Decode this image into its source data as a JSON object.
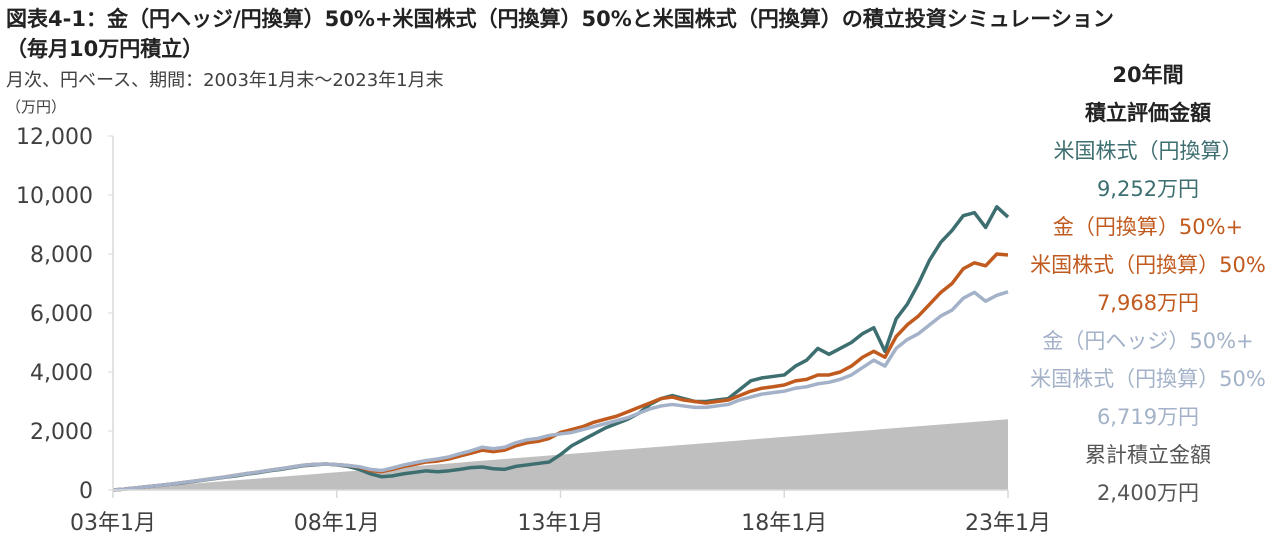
{
  "chart_data": {
    "type": "line",
    "title": "図表4-1：金（円ヘッジ/円換算）50%+米国株式（円換算）50%と米国株式（円換算）の積立投資シミュレーション\n（毎月10万円積立）",
    "subtitle": "月次、円ベース、期間：2003年1月末～2023年1月末",
    "y_label": "（万円）",
    "panel_title": "20年間\n積立評価金額",
    "categories": [
      "03年1月",
      null,
      null,
      null,
      null,
      null,
      null,
      null,
      null,
      null,
      null,
      null,
      null,
      null,
      null,
      null,
      null,
      null,
      null,
      null,
      "08年1月",
      null,
      null,
      null,
      null,
      null,
      null,
      null,
      null,
      null,
      null,
      null,
      null,
      null,
      null,
      null,
      null,
      null,
      null,
      null,
      "13年1月",
      null,
      null,
      null,
      null,
      null,
      null,
      null,
      null,
      null,
      null,
      null,
      null,
      null,
      null,
      null,
      null,
      null,
      null,
      null,
      "18年1月",
      null,
      null,
      null,
      null,
      null,
      null,
      null,
      null,
      null,
      null,
      null,
      null,
      null,
      null,
      null,
      null,
      null,
      null,
      null,
      "23年1月"
    ],
    "ylim": [
      0,
      12000
    ],
    "yticks": [
      0,
      {
        "value": 2000,
        "label": "2,000"
      },
      {
        "value": 4000,
        "label": "4,000"
      },
      {
        "value": 6000,
        "label": "6,000"
      },
      {
        "value": 8000,
        "label": "8,000"
      },
      {
        "value": 10000,
        "label": "10,000"
      },
      {
        "value": 12000,
        "label": "12,000"
      }
    ],
    "grid": false,
    "series": [
      {
        "name": "米国株式（円換算）",
        "color": "#3d6e70",
        "type": "line",
        "values": [
          0,
          30,
          70,
          110,
          150,
          190,
          230,
          280,
          330,
          380,
          430,
          480,
          540,
          590,
          650,
          700,
          760,
          820,
          850,
          880,
          850,
          800,
          700,
          550,
          450,
          480,
          550,
          600,
          650,
          620,
          650,
          700,
          760,
          780,
          720,
          700,
          800,
          850,
          900,
          950,
          1200,
          1500,
          1700,
          1900,
          2100,
          2250,
          2400,
          2600,
          2900,
          3100,
          3200,
          3100,
          3000,
          3000,
          3050,
          3100,
          3400,
          3700,
          3800,
          3850,
          3900,
          4200,
          4400,
          4800,
          4600,
          4800,
          5000,
          5300,
          5500,
          4700,
          5800,
          6300,
          7000,
          7800,
          8400,
          8800,
          9300,
          9400,
          8900,
          9600,
          9252
        ],
        "value_labels": [
          null,
          null,
          null,
          null,
          null,
          null,
          null,
          null,
          null,
          null,
          null,
          null,
          null,
          null,
          null,
          null,
          null,
          null,
          null,
          null,
          null,
          null,
          null,
          null,
          null,
          null,
          null,
          null,
          null,
          null,
          null,
          null,
          null,
          null,
          null,
          null,
          null,
          null,
          null,
          null,
          null,
          null,
          null,
          null,
          null,
          null,
          null,
          null,
          null,
          null,
          null,
          null,
          null,
          null,
          null,
          null,
          null,
          null,
          null,
          null,
          null,
          null,
          null,
          null,
          null,
          null,
          null,
          null,
          null,
          null,
          null,
          null,
          null,
          null,
          null,
          null,
          null,
          null,
          null,
          null,
          "9,252万円"
        ]
      },
      {
        "name": "金（円換算）50%+\n米国株式（円換算）50%",
        "color": "#c05a1e",
        "type": "line",
        "values": [
          0,
          30,
          70,
          110,
          150,
          190,
          240,
          290,
          340,
          390,
          440,
          500,
          560,
          610,
          670,
          720,
          780,
          840,
          870,
          880,
          860,
          830,
          780,
          660,
          620,
          700,
          800,
          870,
          950,
          980,
          1050,
          1150,
          1250,
          1350,
          1300,
          1350,
          1500,
          1600,
          1650,
          1750,
          1950,
          2050,
          2150,
          2300,
          2400,
          2500,
          2650,
          2800,
          2950,
          3100,
          3150,
          3050,
          3000,
          2950,
          3000,
          3050,
          3200,
          3350,
          3450,
          3500,
          3560,
          3700,
          3750,
          3900,
          3900,
          4000,
          4200,
          4500,
          4700,
          4500,
          5200,
          5600,
          5900,
          6300,
          6700,
          7000,
          7500,
          7700,
          7600,
          8000,
          7968
        ],
        "value_labels": [
          null,
          null,
          null,
          null,
          null,
          null,
          null,
          null,
          null,
          null,
          null,
          null,
          null,
          null,
          null,
          null,
          null,
          null,
          null,
          null,
          null,
          null,
          null,
          null,
          null,
          null,
          null,
          null,
          null,
          null,
          null,
          null,
          null,
          null,
          null,
          null,
          null,
          null,
          null,
          null,
          null,
          null,
          null,
          null,
          null,
          null,
          null,
          null,
          null,
          null,
          null,
          null,
          null,
          null,
          null,
          null,
          null,
          null,
          null,
          null,
          null,
          null,
          null,
          null,
          null,
          null,
          null,
          null,
          null,
          null,
          null,
          null,
          null,
          null,
          null,
          null,
          null,
          null,
          null,
          null,
          "7,968万円"
        ]
      },
      {
        "name": "金（円ヘッジ）50%+\n米国株式（円換算）50%",
        "color": "#a3b2c8",
        "type": "line",
        "values": [
          0,
          30,
          70,
          110,
          150,
          190,
          240,
          290,
          340,
          390,
          440,
          500,
          560,
          610,
          670,
          720,
          780,
          840,
          870,
          880,
          860,
          830,
          790,
          700,
          660,
          750,
          850,
          930,
          1000,
          1050,
          1120,
          1230,
          1330,
          1450,
          1400,
          1450,
          1600,
          1700,
          1750,
          1850,
          1900,
          1950,
          2050,
          2150,
          2250,
          2350,
          2450,
          2600,
          2750,
          2850,
          2900,
          2850,
          2800,
          2800,
          2850,
          2900,
          3050,
          3150,
          3250,
          3300,
          3350,
          3450,
          3500,
          3600,
          3650,
          3750,
          3900,
          4150,
          4400,
          4200,
          4800,
          5100,
          5300,
          5600,
          5900,
          6100,
          6500,
          6700,
          6400,
          6600,
          6719
        ],
        "value_labels": [
          null,
          null,
          null,
          null,
          null,
          null,
          null,
          null,
          null,
          null,
          null,
          null,
          null,
          null,
          null,
          null,
          null,
          null,
          null,
          null,
          null,
          null,
          null,
          null,
          null,
          null,
          null,
          null,
          null,
          null,
          null,
          null,
          null,
          null,
          null,
          null,
          null,
          null,
          null,
          null,
          null,
          null,
          null,
          null,
          null,
          null,
          null,
          null,
          null,
          null,
          null,
          null,
          null,
          null,
          null,
          null,
          null,
          null,
          null,
          null,
          null,
          null,
          null,
          null,
          null,
          null,
          null,
          null,
          null,
          null,
          null,
          null,
          null,
          null,
          null,
          null,
          null,
          null,
          null,
          null,
          "6,719万円"
        ]
      },
      {
        "name": "累計積立金額",
        "color": "#bfbfbf",
        "type": "area",
        "values": [
          0,
          30,
          60,
          90,
          120,
          150,
          180,
          210,
          240,
          270,
          300,
          330,
          360,
          390,
          420,
          450,
          480,
          510,
          540,
          570,
          600,
          630,
          660,
          690,
          720,
          750,
          780,
          810,
          840,
          870,
          900,
          930,
          960,
          990,
          1020,
          1050,
          1080,
          1110,
          1140,
          1170,
          1200,
          1230,
          1260,
          1290,
          1320,
          1350,
          1380,
          1410,
          1440,
          1470,
          1500,
          1530,
          1560,
          1590,
          1620,
          1650,
          1680,
          1710,
          1740,
          1770,
          1800,
          1830,
          1860,
          1890,
          1920,
          1950,
          1980,
          2010,
          2040,
          2070,
          2100,
          2130,
          2160,
          2190,
          2220,
          2250,
          2280,
          2310,
          2340,
          2370,
          2400
        ],
        "value_labels": [
          null,
          null,
          null,
          null,
          null,
          null,
          null,
          null,
          null,
          null,
          null,
          null,
          null,
          null,
          null,
          null,
          null,
          null,
          null,
          null,
          null,
          null,
          null,
          null,
          null,
          null,
          null,
          null,
          null,
          null,
          null,
          null,
          null,
          null,
          null,
          null,
          null,
          null,
          null,
          null,
          null,
          null,
          null,
          null,
          null,
          null,
          null,
          null,
          null,
          null,
          null,
          null,
          null,
          null,
          null,
          null,
          null,
          null,
          null,
          null,
          null,
          null,
          null,
          null,
          null,
          null,
          null,
          null,
          null,
          null,
          null,
          null,
          null,
          null,
          null,
          null,
          null,
          null,
          null,
          null,
          "2,400万円"
        ]
      }
    ]
  }
}
